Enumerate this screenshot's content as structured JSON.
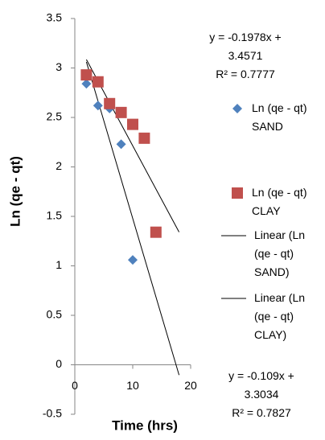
{
  "chart_data": {
    "type": "scatter",
    "x_label": "Time (hrs)",
    "y_label": "Ln (qe - qt)",
    "xlim": [
      0,
      20
    ],
    "xticks": [
      0,
      10,
      20
    ],
    "ylim": [
      -0.5,
      3.5
    ],
    "yticks": [
      -0.5,
      0,
      0.5,
      1,
      1.5,
      2,
      2.5,
      3,
      3.5
    ],
    "grid": false,
    "legend": "right",
    "series": [
      {
        "name": "Ln (qe - qt) SAND",
        "color": "#4f81bd",
        "marker": "diamond",
        "x": [
          2,
          4,
          6,
          8,
          10
        ],
        "values": [
          2.84,
          2.62,
          2.59,
          2.23,
          1.06
        ]
      },
      {
        "name": "Ln (qe - qt) CLAY",
        "color": "#c0504d",
        "marker": "square",
        "x": [
          2,
          4,
          6,
          8,
          10,
          12,
          14
        ],
        "values": [
          2.93,
          2.86,
          2.64,
          2.55,
          2.43,
          2.29,
          1.34
        ]
      }
    ],
    "trendlines": [
      {
        "name": "Linear (Ln (qe - qt) SAND)",
        "series": 0,
        "slope": -0.1978,
        "intercept": 3.4571,
        "forecast_forward": 8,
        "equation": "y = -0.1978x + 3.4571",
        "r_squared": "R² = 0.7777"
      },
      {
        "name": "Linear (Ln (qe - qt) CLAY)",
        "series": 1,
        "slope": -0.109,
        "intercept": 3.3034,
        "forecast_forward": 4,
        "equation": "y = -0.109x + 3.3034",
        "r_squared": "R² = 0.7827"
      }
    ]
  }
}
